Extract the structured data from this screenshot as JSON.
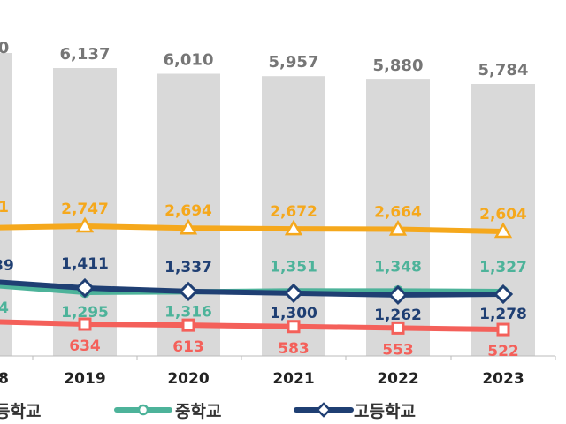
{
  "chart_data": {
    "type": "bar+line",
    "categories": [
      "2019",
      "2020",
      "2021",
      "2022",
      "2023"
    ],
    "partial_category_fragment": "8",
    "bars": {
      "values": [
        6137,
        6010,
        5957,
        5880,
        5784
      ],
      "labels": [
        "6,137",
        "6,010",
        "5,957",
        "5,880",
        "5,784"
      ],
      "partial_label": "0",
      "color": "#d9d9d9"
    },
    "series": [
      {
        "name": "",
        "values": [
          2747,
          2694,
          2672,
          2664,
          2604
        ],
        "labels": [
          "2,747",
          "2,694",
          "2,672",
          "2,664",
          "2,604"
        ],
        "partial_label": "1",
        "color": "#f5a81c",
        "marker": "triangle"
      },
      {
        "name": "중학교",
        "values": [
          1295,
          1316,
          1351,
          1348,
          1327
        ],
        "labels": [
          "1,295",
          "1,316",
          "1,351",
          "1,348",
          "1,327"
        ],
        "partial_label": "4",
        "color": "#4db39a",
        "marker": "circle"
      },
      {
        "name": "고등학교",
        "values": [
          1411,
          1337,
          1300,
          1262,
          1278
        ],
        "labels": [
          "1,411",
          "1,337",
          "1,300",
          "1,262",
          "1,278"
        ],
        "partial_label": "39",
        "color": "#1f3f73",
        "marker": "diamond"
      },
      {
        "name": "",
        "values": [
          634,
          613,
          583,
          553,
          522
        ],
        "labels": [
          "634",
          "613",
          "583",
          "553",
          "522"
        ],
        "color": "#f4605a",
        "marker": "square"
      }
    ],
    "legend": {
      "placement": "bottom",
      "items": [
        "등학교",
        "중학교",
        "고등학교"
      ]
    }
  }
}
